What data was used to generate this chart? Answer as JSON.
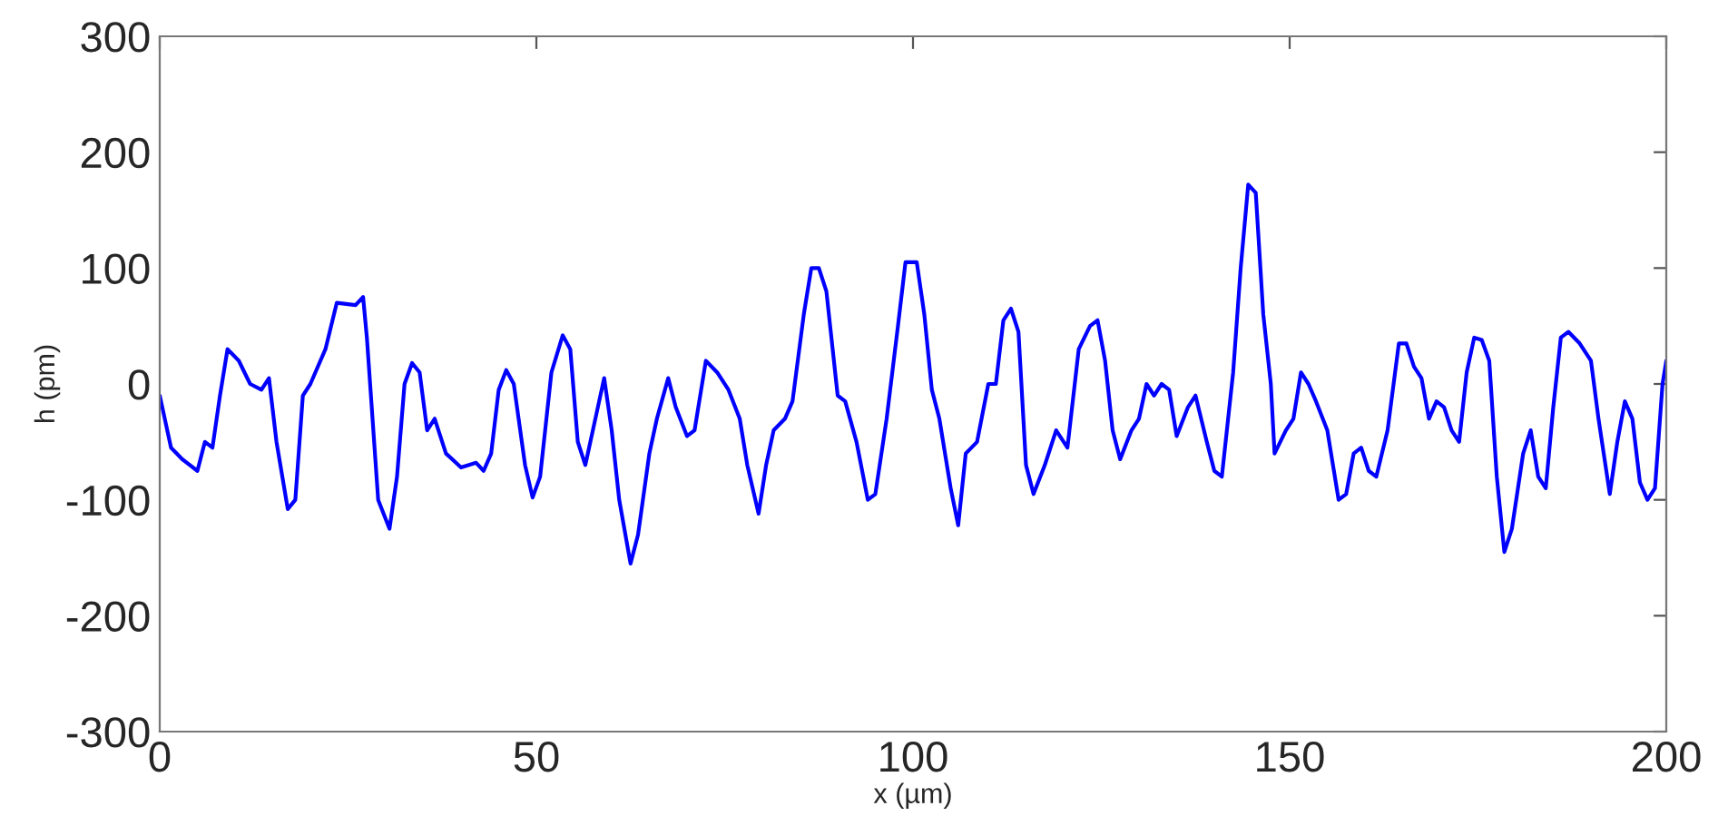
{
  "chart_data": {
    "type": "line",
    "xlabel": "x (µm)",
    "ylabel": "h (pm)",
    "xlim": [
      0,
      200
    ],
    "ylim": [
      -300,
      300
    ],
    "xticks": [
      0,
      50,
      100,
      150,
      200
    ],
    "yticks": [
      -300,
      -200,
      -100,
      0,
      100,
      200,
      300
    ],
    "grid": false,
    "line_style": "solid",
    "series": [
      {
        "color": "#0000ff",
        "x": [
          0,
          1.5,
          3,
          5,
          6,
          7,
          8,
          9,
          10.5,
          12,
          13.5,
          14.5,
          15.5,
          17,
          18,
          19,
          20,
          22,
          23.5,
          26,
          27,
          27.5,
          29,
          30.5,
          31.5,
          32.5,
          33.5,
          34.5,
          35.5,
          36.5,
          38,
          40,
          42,
          43,
          44,
          45,
          46,
          47,
          48.5,
          49.5,
          50.5,
          52,
          53.5,
          54.5,
          55.5,
          56.5,
          58,
          59,
          60,
          61,
          62.5,
          63.5,
          65,
          66,
          67.5,
          68.5,
          70,
          71,
          72.5,
          74,
          75.5,
          77,
          78,
          79.5,
          80.5,
          81.5,
          83,
          84,
          85.5,
          86.5,
          87.5,
          88.5,
          90,
          91,
          92.5,
          94,
          95,
          96.5,
          98,
          99,
          100.5,
          101.5,
          102.5,
          103.5,
          105,
          106,
          107,
          108.5,
          110,
          111,
          112,
          113,
          114,
          115,
          116,
          117.5,
          119,
          120.5,
          122,
          123.5,
          124.5,
          125.5,
          126.5,
          127.5,
          129,
          130,
          131,
          132,
          133,
          134,
          135,
          136.5,
          137.5,
          139,
          140,
          141,
          142.5,
          143.5,
          144.5,
          145.5,
          146.5,
          147.5,
          148,
          149.5,
          150.5,
          151.5,
          152.5,
          153.5,
          155,
          156.5,
          157.5,
          158.5,
          159.5,
          160.5,
          161.5,
          163,
          164.5,
          165.5,
          166.5,
          167.5,
          168.5,
          169.5,
          170.5,
          171.5,
          172.5,
          173.5,
          174.5,
          175.5,
          176.5,
          177.5,
          178.5,
          179.5,
          181,
          182,
          183,
          184,
          185,
          186,
          187,
          188.5,
          190,
          191,
          192.5,
          193.5,
          194.5,
          195.5,
          196.5,
          197.5,
          198.5,
          199.5,
          200
        ],
        "values": [
          -10,
          -55,
          -65,
          -75,
          -50,
          -55,
          -10,
          30,
          20,
          0,
          -5,
          5,
          -50,
          -108,
          -100,
          -10,
          0,
          30,
          70,
          68,
          75,
          40,
          -100,
          -125,
          -80,
          0,
          18,
          10,
          -40,
          -30,
          -60,
          -72,
          -68,
          -75,
          -60,
          -5,
          12,
          0,
          -70,
          -98,
          -80,
          10,
          42,
          30,
          -50,
          -70,
          -25,
          5,
          -40,
          -100,
          -155,
          -130,
          -60,
          -30,
          5,
          -20,
          -45,
          -40,
          20,
          10,
          -5,
          -30,
          -70,
          -112,
          -70,
          -40,
          -30,
          -15,
          60,
          100,
          100,
          80,
          -10,
          -15,
          -50,
          -100,
          -95,
          -30,
          50,
          105,
          105,
          60,
          -5,
          -30,
          -90,
          -122,
          -60,
          -50,
          0,
          0,
          55,
          65,
          45,
          -70,
          -95,
          -70,
          -40,
          -55,
          30,
          50,
          55,
          20,
          -40,
          -65,
          -40,
          -30,
          0,
          -10,
          0,
          -5,
          -45,
          -20,
          -10,
          -50,
          -75,
          -80,
          10,
          100,
          172,
          165,
          60,
          0,
          -60,
          -40,
          -30,
          10,
          0,
          -15,
          -40,
          -100,
          -95,
          -60,
          -55,
          -75,
          -80,
          -40,
          35,
          35,
          15,
          5,
          -30,
          -15,
          -20,
          -40,
          -50,
          10,
          40,
          38,
          20,
          -80,
          -145,
          -125,
          -60,
          -40,
          -80,
          -90,
          -20,
          40,
          45,
          35,
          20,
          -30,
          -95,
          -50,
          -15,
          -30,
          -85,
          -100,
          -90,
          0,
          20
        ]
      }
    ]
  }
}
